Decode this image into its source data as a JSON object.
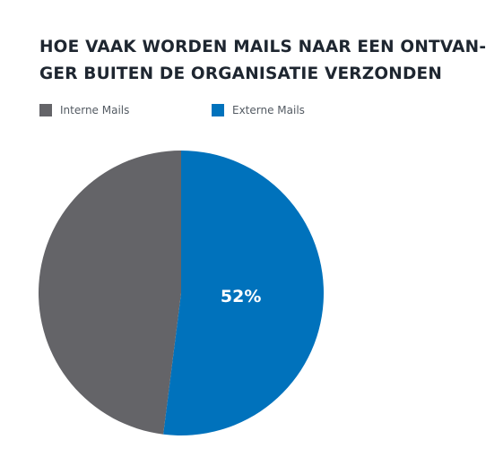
{
  "title": "HOE VAAK WORDEN MAILS NAAR EEN ONTVANGER BUITEN DE ORGANISATIE VERZONDEN",
  "title_lines": [
    "HOE VAAK WORDEN MAILS NAAR EEN ONTVAN-",
    "GER BUITEN DE ORGANISATIE VERZONDEN"
  ],
  "chart_data": {
    "type": "pie",
    "title": "HOE VAAK WORDEN MAILS NAAR EEN ONTVANGER BUITEN DE ORGANISATIE VERZONDEN",
    "legend_position": "top-left",
    "slices": [
      {
        "name": "Interne Mails",
        "value": 48,
        "color": "#646468",
        "label": ""
      },
      {
        "name": "Externe Mails",
        "value": 52,
        "color": "#0072bc",
        "label": "52%"
      }
    ]
  }
}
